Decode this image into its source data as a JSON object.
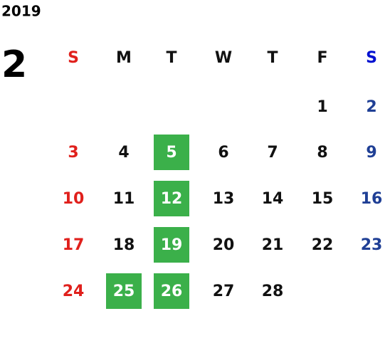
{
  "year": "2019",
  "month": "2",
  "weekdays": [
    "S",
    "M",
    "T",
    "W",
    "T",
    "F",
    "S"
  ],
  "weeks": [
    [
      null,
      null,
      null,
      null,
      null,
      "1",
      "2"
    ],
    [
      "3",
      "4",
      {
        "text": "5",
        "highlight": true
      },
      "6",
      "7",
      "8",
      "9"
    ],
    [
      "10",
      "11",
      {
        "text": "12",
        "highlight": true
      },
      "13",
      "14",
      "15",
      "16"
    ],
    [
      "17",
      "18",
      {
        "text": "19",
        "highlight": true
      },
      "20",
      "21",
      "22",
      "23"
    ],
    [
      "24",
      {
        "text": "25",
        "highlight": true
      },
      {
        "text": "26",
        "highlight": true
      },
      "27",
      "28",
      null,
      null
    ]
  ],
  "colors": {
    "text": "#111111",
    "sunday": "#e0201c",
    "saturday": "#1f3f95",
    "saturday_header": "#0010d0",
    "highlight": "#3bb04a",
    "highlight_text": "#ffffff"
  }
}
